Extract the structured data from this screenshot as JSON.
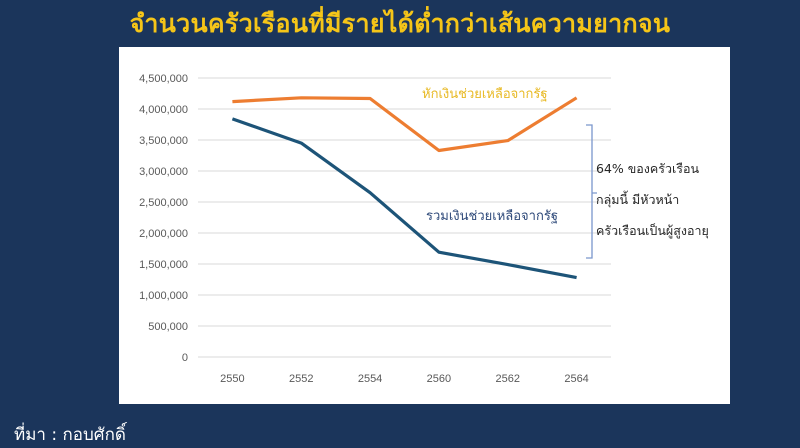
{
  "title": "จำนวนครัวเรือนที่มีรายได้ต่ำกว่าเส้นความยากจน",
  "source": "ที่มา : กอบศักดิ์",
  "colors": {
    "background": "#1b355b",
    "title": "#f5c518",
    "series_orange": "#ed7d31",
    "series_blue": "#1d5478",
    "bracket": "#7a96cc",
    "gridline": "#d9d9d9"
  },
  "annotation": {
    "lines": [
      "64% ของครัวเรือน",
      "กลุ่มนี้ มีหัวหน้า",
      "ครัวเรือนเป็นผู้สูงอายุ"
    ]
  },
  "chart_data": {
    "type": "line",
    "title": "จำนวนครัวเรือนที่มีรายได้ต่ำกว่าเส้นความยากจน",
    "xlabel": "",
    "ylabel": "",
    "categories": [
      "2550",
      "2552",
      "2554",
      "2560",
      "2562",
      "2564"
    ],
    "ylim": [
      0,
      4500000
    ],
    "yticks": [
      0,
      500000,
      1000000,
      1500000,
      2000000,
      2500000,
      3000000,
      3500000,
      4000000,
      4500000
    ],
    "ytick_labels": [
      "0",
      "500,000",
      "1,000,000",
      "1,500,000",
      "2,000,000",
      "2,500,000",
      "3,000,000",
      "3,500,000",
      "4,000,000",
      "4,500,000"
    ],
    "grid": true,
    "legend": "inline labels",
    "series": [
      {
        "name": "หักเงินช่วยเหลือจากรัฐ",
        "color": "#ed7d31",
        "label_color": "#e8b923",
        "values": [
          4120000,
          4180000,
          4170000,
          3330000,
          3490000,
          4180000
        ]
      },
      {
        "name": "รวมเงินช่วยเหลือจากรัฐ",
        "color": "#1d5478",
        "label_color": "#2f4a7a",
        "values": [
          3840000,
          3450000,
          2650000,
          1690000,
          1490000,
          1280000
        ]
      }
    ]
  }
}
